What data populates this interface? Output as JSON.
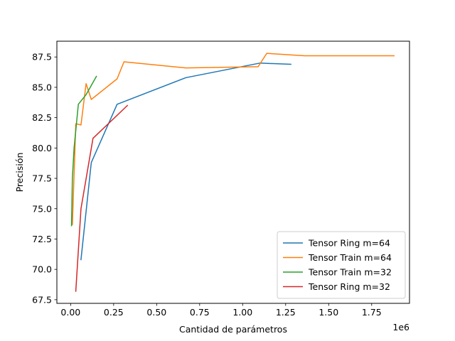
{
  "chart_data": {
    "type": "line",
    "title": "",
    "xlabel": "Cantidad de parámetros",
    "ylabel": "Precisión",
    "x_offset_text": "1e6",
    "xlim": [
      -0.08,
      1.97
    ],
    "ylim": [
      67.2,
      88.8
    ],
    "xticks": [
      0.0,
      0.25,
      0.5,
      0.75,
      1.0,
      1.25,
      1.5,
      1.75
    ],
    "xtick_labels": [
      "0.00",
      "0.25",
      "0.50",
      "0.75",
      "1.00",
      "1.25",
      "1.50",
      "1.75"
    ],
    "yticks": [
      67.5,
      70.0,
      72.5,
      75.0,
      77.5,
      80.0,
      82.5,
      85.0,
      87.5
    ],
    "ytick_labels": [
      "67.5",
      "70.0",
      "72.5",
      "75.0",
      "77.5",
      "80.0",
      "82.5",
      "85.0",
      "87.5"
    ],
    "grid": false,
    "legend_position": "lower-right",
    "series": [
      {
        "name": "Tensor Ring m=64",
        "color": "#1f77b4",
        "x": [
          0.06,
          0.12,
          0.27,
          0.67,
          1.1,
          1.28
        ],
        "y": [
          70.8,
          78.8,
          83.6,
          85.8,
          87.0,
          86.9
        ]
      },
      {
        "name": "Tensor Train m=64",
        "color": "#ff7f0e",
        "x": [
          0.01,
          0.03,
          0.06,
          0.09,
          0.12,
          0.27,
          0.31,
          0.67,
          1.09,
          1.14,
          1.36,
          1.88
        ],
        "y": [
          73.7,
          82.0,
          81.9,
          85.3,
          84.0,
          85.7,
          87.1,
          86.6,
          86.7,
          87.8,
          87.6,
          87.6
        ]
      },
      {
        "name": "Tensor Train m=32",
        "color": "#2ca02c",
        "x": [
          0.005,
          0.01,
          0.02,
          0.045,
          0.09,
          0.15
        ],
        "y": [
          73.6,
          77.5,
          80.0,
          83.6,
          84.4,
          85.9
        ]
      },
      {
        "name": "Tensor Ring m=32",
        "color": "#d62728",
        "x": [
          0.03,
          0.06,
          0.13,
          0.33
        ],
        "y": [
          68.2,
          75.0,
          80.8,
          83.5
        ]
      }
    ]
  }
}
